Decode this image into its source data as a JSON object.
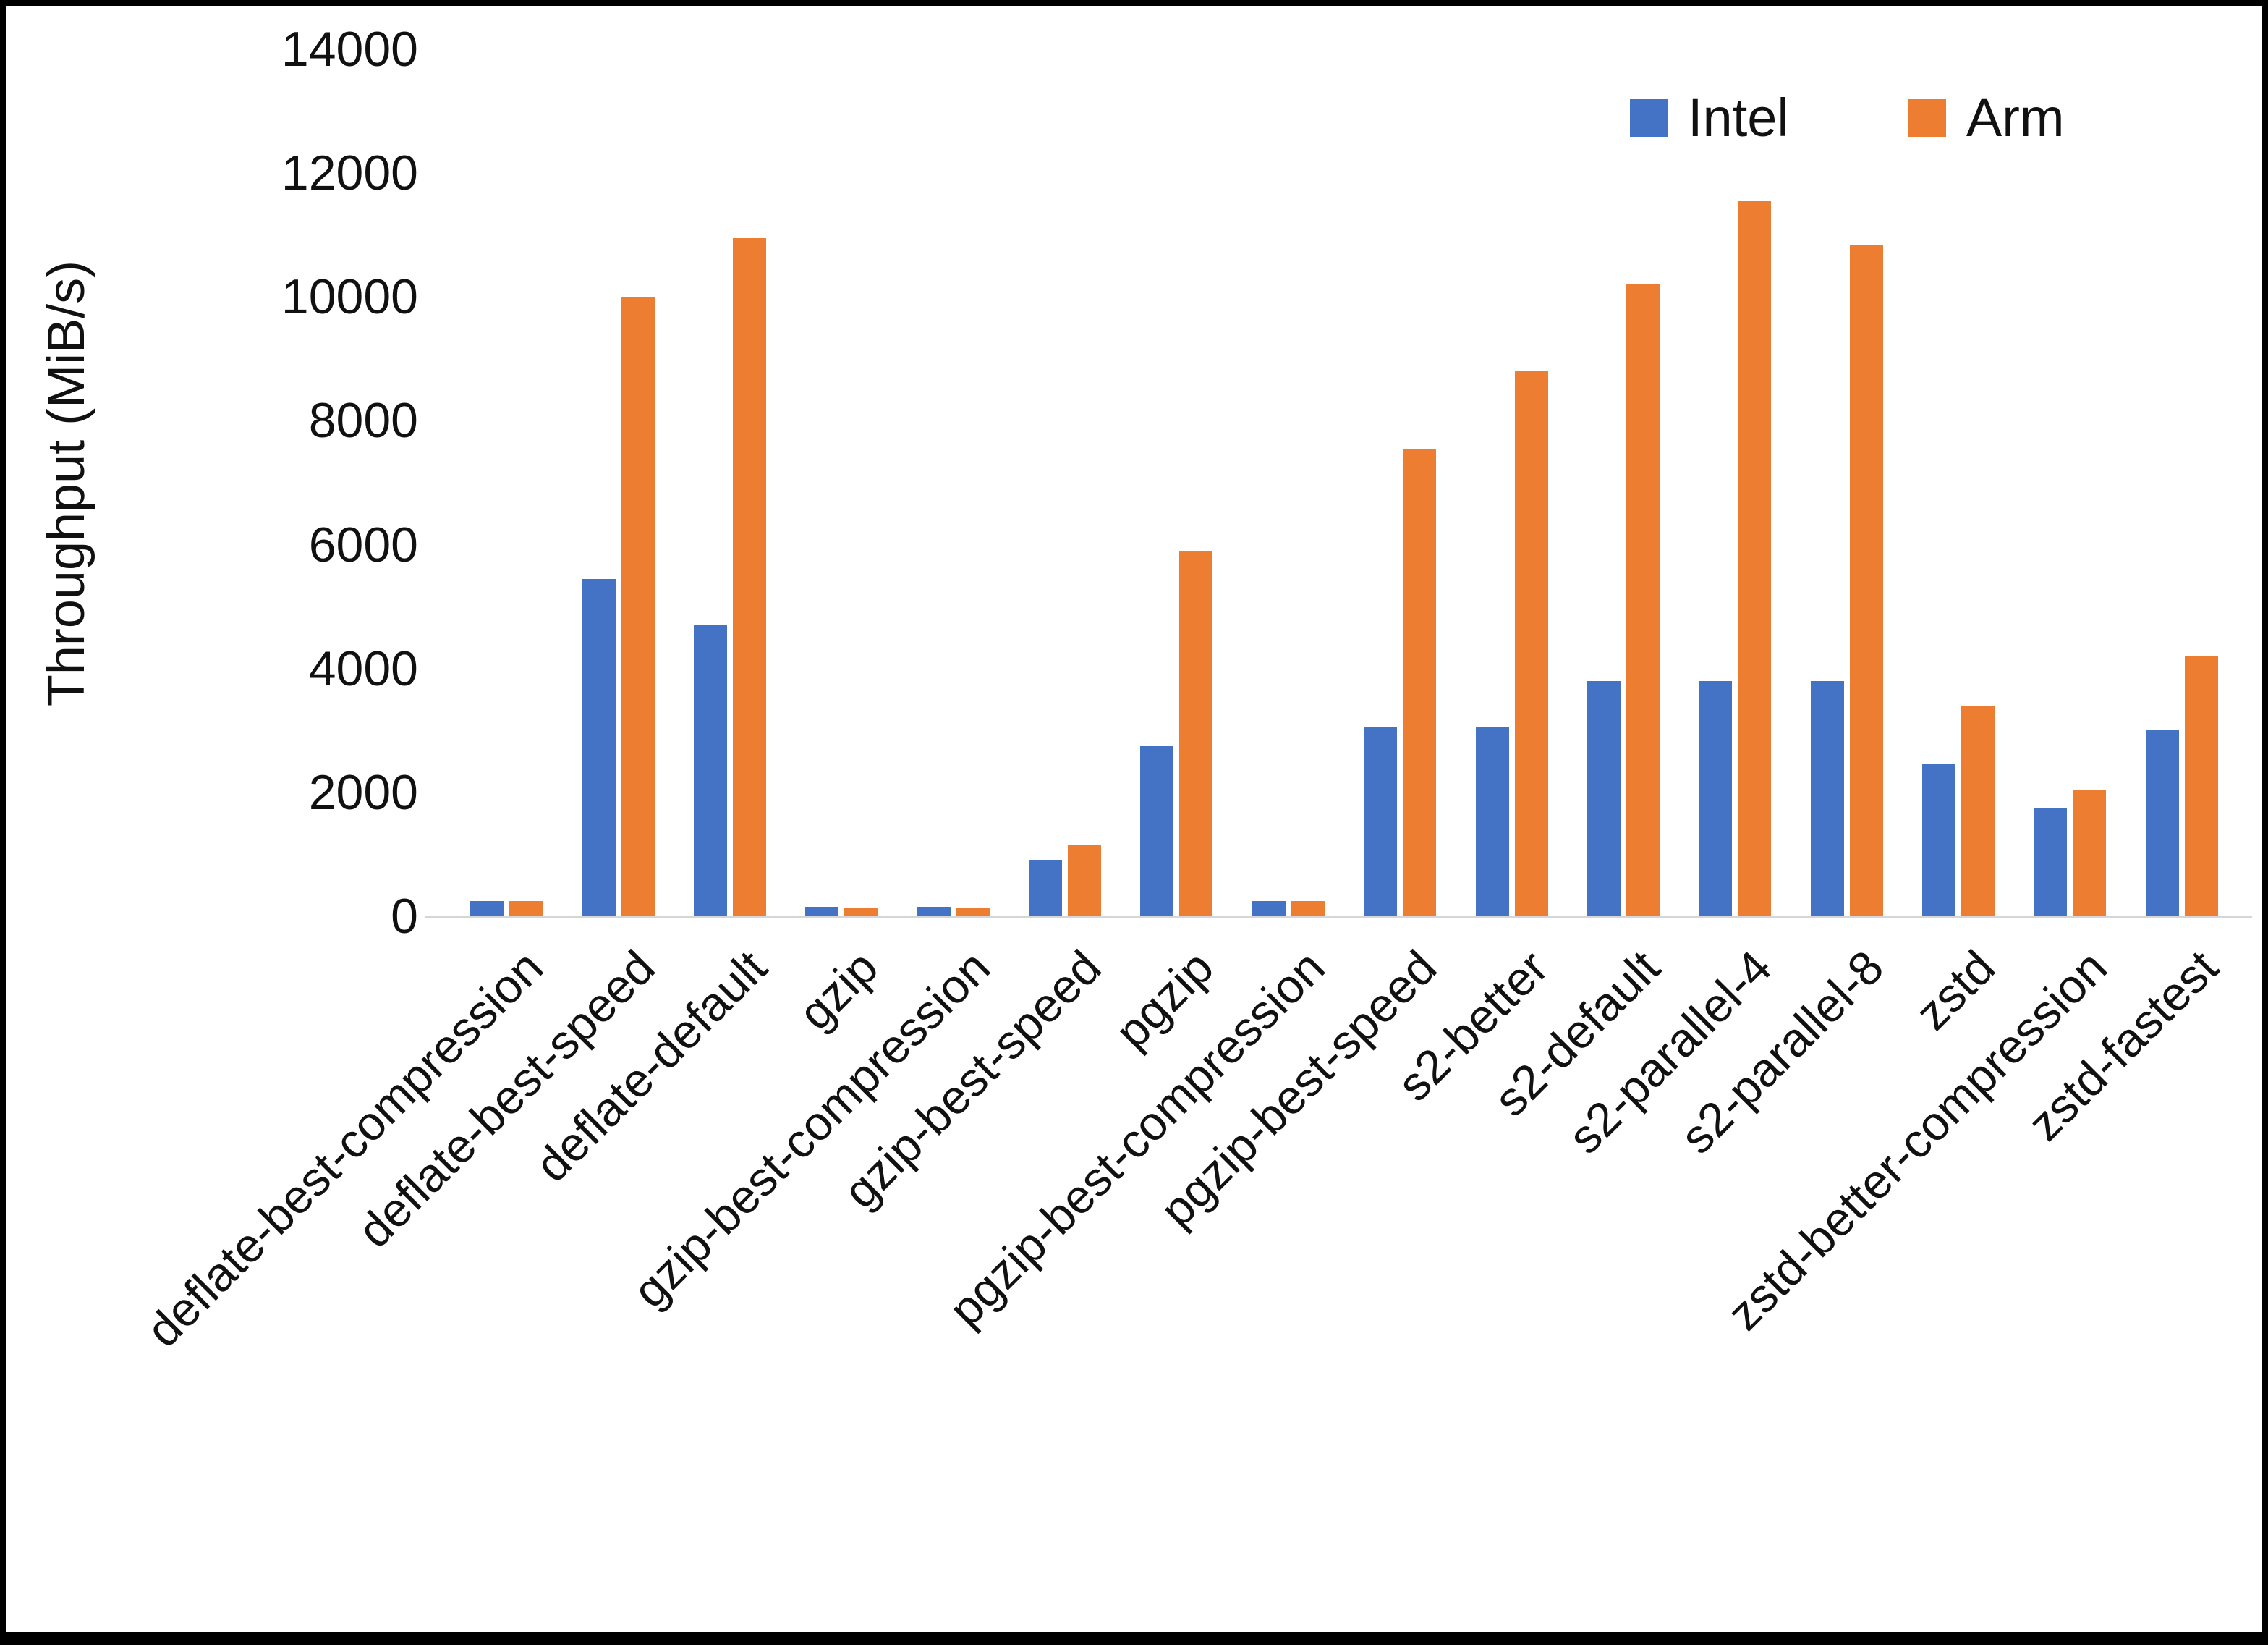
{
  "chart_data": {
    "type": "bar",
    "title": "",
    "xlabel": "",
    "ylabel": "Throughput (MiB/s)",
    "ylim": [
      0,
      14000
    ],
    "ytick_step": 2000,
    "grid": false,
    "legend_position": "top-right",
    "categories": [
      "deflate-best-compression",
      "deflate-best-speed",
      "deflate-default",
      "gzip",
      "gzip-best-compression",
      "gzip-best-speed",
      "pgzip",
      "pgzip-best-compression",
      "pgzip-best-speed",
      "s2-better",
      "s2-default",
      "s2-parallel-4",
      "s2-parallel-8",
      "zstd",
      "zstd-better-compression",
      "zstd-fastest"
    ],
    "series": [
      {
        "name": "Intel",
        "color": "#4472C4",
        "values": [
          250,
          5450,
          4700,
          150,
          150,
          900,
          2750,
          250,
          3050,
          3050,
          3800,
          3800,
          3800,
          2450,
          1750,
          3000
        ]
      },
      {
        "name": "Arm",
        "color": "#ED7D31",
        "values": [
          250,
          10000,
          10950,
          130,
          130,
          1150,
          5900,
          250,
          7550,
          8800,
          10200,
          11550,
          10850,
          3400,
          2050,
          4200
        ]
      }
    ],
    "colors": {
      "axis_line": "#d6d6d6",
      "text": "#111111"
    }
  }
}
